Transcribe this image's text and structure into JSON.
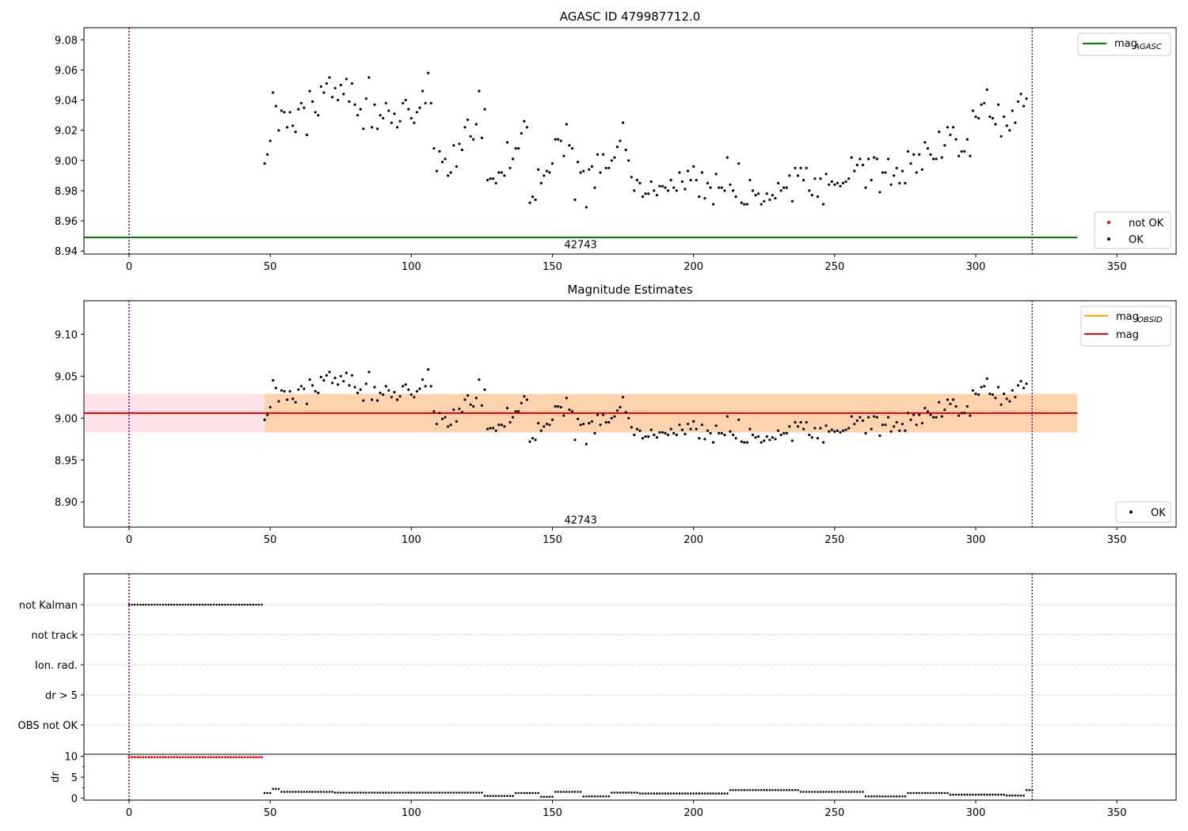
{
  "chart_data": [
    {
      "type": "scatter",
      "title": "AGASC ID 479987712.0",
      "xlim": [
        -16,
        371
      ],
      "ylim": [
        8.938,
        9.088
      ],
      "xticks": [
        0,
        50,
        100,
        150,
        200,
        250,
        300,
        350
      ],
      "yticks": [
        8.94,
        8.96,
        8.98,
        9.0,
        9.02,
        9.04,
        9.06,
        9.08
      ],
      "ytick_labels": [
        "8.94",
        "8.96",
        "8.98",
        "9.00",
        "9.02",
        "9.04",
        "9.06",
        "9.08"
      ],
      "vlines": [
        0,
        320
      ],
      "vline_color": "#800080",
      "hline": {
        "y": 8.949,
        "x": [
          -16,
          336
        ],
        "color": "#008000"
      },
      "annotation": {
        "text": "42743",
        "x": 160,
        "y": 8.944
      },
      "legend_lines": [
        {
          "name": "mag",
          "sub": "AGASC",
          "color": "#008000"
        }
      ],
      "legend_markers": [
        {
          "name": "not OK",
          "color": "#ff0000"
        },
        {
          "name": "OK",
          "color": "#000000"
        }
      ],
      "series_key": "mag_points",
      "series_color": "#000000"
    },
    {
      "type": "scatter",
      "title": "Magnitude Estimates",
      "xlim": [
        -16,
        371
      ],
      "ylim": [
        8.87,
        9.14
      ],
      "xticks": [
        0,
        50,
        100,
        150,
        200,
        250,
        300,
        350
      ],
      "yticks": [
        8.9,
        8.95,
        9.0,
        9.05,
        9.1
      ],
      "ytick_labels": [
        "8.90",
        "8.95",
        "9.00",
        "9.05",
        "9.10"
      ],
      "vlines": [
        0,
        320
      ],
      "vline_color": "#800080",
      "bands": [
        {
          "x": [
            -16,
            336
          ],
          "y": [
            8.983,
            9.029
          ],
          "color": "#ffc0cb",
          "opacity": 0.45
        },
        {
          "x": [
            48,
            336
          ],
          "y": [
            8.983,
            9.029
          ],
          "color": "#ffa500",
          "opacity": 0.25
        }
      ],
      "hline": {
        "y": 9.006,
        "x": [
          -16,
          336
        ],
        "color": "#ff0000"
      },
      "annotation": {
        "text": "42743",
        "x": 160,
        "y": 8.878
      },
      "legend_lines": [
        {
          "name": "mag",
          "sub": "OBSID",
          "color": "#ffa500"
        },
        {
          "name": "mag",
          "sub": "",
          "color": "#ff0000"
        }
      ],
      "legend_markers": [
        {
          "name": "OK",
          "color": "#000000"
        }
      ],
      "series_key": "mag_points",
      "series_color": "#000000"
    },
    {
      "type": "scatter",
      "title": "",
      "xlim": [
        -16,
        371
      ],
      "xticks": [
        0,
        50,
        100,
        150,
        200,
        250,
        300,
        350
      ],
      "category_rows": [
        "not Kalman",
        "not track",
        "Ion. rad.",
        "dr > 5",
        "OBS not OK"
      ],
      "flag_ranges": [
        {
          "row": "not Kalman",
          "x": [
            0,
            47
          ]
        }
      ],
      "vlines": [
        0,
        320
      ],
      "vline_color": "#800080"
    },
    {
      "type": "scatter",
      "title": "",
      "ylabel": "dr",
      "xlim": [
        -16,
        371
      ],
      "ylim": [
        -0.5,
        10.5
      ],
      "xticks": [
        0,
        50,
        100,
        150,
        200,
        250,
        300,
        350
      ],
      "yticks": [
        0,
        5,
        10
      ],
      "ytick_labels": [
        "0",
        "5",
        "10"
      ],
      "vlines": [
        0,
        320
      ],
      "vline_color": "#800080",
      "dr_high": {
        "x": [
          0,
          47
        ],
        "y": 9.8,
        "color": "#ff0000"
      },
      "dr_segments": [
        {
          "x": [
            48,
            50
          ],
          "y": 1.2
        },
        {
          "x": [
            51,
            53
          ],
          "y": 2.2
        },
        {
          "x": [
            54,
            72
          ],
          "y": 1.5
        },
        {
          "x": [
            73,
            125
          ],
          "y": 1.3
        },
        {
          "x": [
            126,
            136
          ],
          "y": 0.5
        },
        {
          "x": [
            137,
            145
          ],
          "y": 1.2
        },
        {
          "x": [
            146,
            150
          ],
          "y": 0.3
        },
        {
          "x": [
            151,
            160
          ],
          "y": 1.5
        },
        {
          "x": [
            161,
            170
          ],
          "y": 0.4
        },
        {
          "x": [
            171,
            180
          ],
          "y": 1.3
        },
        {
          "x": [
            181,
            212
          ],
          "y": 1.1
        },
        {
          "x": [
            213,
            237
          ],
          "y": 1.9
        },
        {
          "x": [
            238,
            260
          ],
          "y": 1.5
        },
        {
          "x": [
            261,
            275
          ],
          "y": 0.4
        },
        {
          "x": [
            276,
            290
          ],
          "y": 1.2
        },
        {
          "x": [
            291,
            310
          ],
          "y": 0.8
        },
        {
          "x": [
            311,
            317
          ],
          "y": 0.6
        },
        {
          "x": [
            318,
            320
          ],
          "y": 1.9
        }
      ]
    }
  ],
  "mag_points": [
    [
      48,
      8.998
    ],
    [
      49,
      9.004
    ],
    [
      50,
      9.013
    ],
    [
      51,
      9.045
    ],
    [
      52,
      9.036
    ],
    [
      53,
      9.02
    ],
    [
      54,
      9.033
    ],
    [
      55,
      9.032
    ],
    [
      56,
      9.022
    ],
    [
      57,
      9.032
    ],
    [
      58,
      9.023
    ],
    [
      59,
      9.019
    ],
    [
      60,
      9.034
    ],
    [
      61,
      9.038
    ],
    [
      62,
      9.035
    ],
    [
      63,
      9.017
    ],
    [
      64,
      9.046
    ],
    [
      65,
      9.039
    ],
    [
      66,
      9.032
    ],
    [
      67,
      9.03
    ],
    [
      68,
      9.049
    ],
    [
      69,
      9.045
    ],
    [
      70,
      9.051
    ],
    [
      71,
      9.055
    ],
    [
      72,
      9.042
    ],
    [
      73,
      9.048
    ],
    [
      74,
      9.04
    ],
    [
      75,
      9.05
    ],
    [
      76,
      9.044
    ],
    [
      77,
      9.054
    ],
    [
      78,
      9.039
    ],
    [
      79,
      9.051
    ],
    [
      80,
      9.037
    ],
    [
      81,
      9.03
    ],
    [
      82,
      9.034
    ],
    [
      83,
      9.021
    ],
    [
      84,
      9.041
    ],
    [
      85,
      9.055
    ],
    [
      86,
      9.022
    ],
    [
      87,
      9.037
    ],
    [
      88,
      9.021
    ],
    [
      89,
      9.03
    ],
    [
      90,
      9.028
    ],
    [
      91,
      9.038
    ],
    [
      92,
      9.033
    ],
    [
      93,
      9.025
    ],
    [
      94,
      9.031
    ],
    [
      95,
      9.022
    ],
    [
      96,
      9.026
    ],
    [
      97,
      9.038
    ],
    [
      98,
      9.04
    ],
    [
      99,
      9.034
    ],
    [
      100,
      9.028
    ],
    [
      101,
      9.025
    ],
    [
      102,
      9.032
    ],
    [
      103,
      9.035
    ],
    [
      104,
      9.046
    ],
    [
      105,
      9.038
    ],
    [
      106,
      9.058
    ],
    [
      107,
      9.038
    ],
    [
      108,
      9.008
    ],
    [
      109,
      8.993
    ],
    [
      110,
      9.006
    ],
    [
      111,
      8.999
    ],
    [
      112,
      9.001
    ],
    [
      113,
      8.99
    ],
    [
      114,
      8.992
    ],
    [
      115,
      9.01
    ],
    [
      116,
      8.996
    ],
    [
      117,
      9.011
    ],
    [
      118,
      9.007
    ],
    [
      119,
      9.022
    ],
    [
      120,
      9.027
    ],
    [
      121,
      9.016
    ],
    [
      122,
      9.014
    ],
    [
      123,
      9.024
    ],
    [
      124,
      9.046
    ],
    [
      125,
      9.015
    ],
    [
      126,
      9.034
    ],
    [
      127,
      8.987
    ],
    [
      128,
      8.988
    ],
    [
      129,
      8.988
    ],
    [
      130,
      8.985
    ],
    [
      131,
      8.992
    ],
    [
      132,
      8.992
    ],
    [
      133,
      8.99
    ],
    [
      134,
      9.012
    ],
    [
      135,
      8.995
    ],
    [
      136,
      9.001
    ],
    [
      137,
      9.008
    ],
    [
      138,
      9.008
    ],
    [
      139,
      9.018
    ],
    [
      140,
      9.026
    ],
    [
      141,
      9.022
    ],
    [
      142,
      8.972
    ],
    [
      143,
      8.976
    ],
    [
      144,
      8.974
    ],
    [
      145,
      8.994
    ],
    [
      146,
      8.985
    ],
    [
      147,
      8.99
    ],
    [
      148,
      8.993
    ],
    [
      149,
      8.992
    ],
    [
      150,
      8.998
    ],
    [
      151,
      9.014
    ],
    [
      152,
      9.014
    ],
    [
      153,
      9.013
    ],
    [
      154,
      9.003
    ],
    [
      155,
      9.024
    ],
    [
      156,
      9.01
    ],
    [
      157,
      9.008
    ],
    [
      158,
      8.974
    ],
    [
      159,
      8.999
    ],
    [
      160,
      8.992
    ],
    [
      161,
      8.993
    ],
    [
      162,
      8.969
    ],
    [
      163,
      8.994
    ],
    [
      164,
      8.996
    ],
    [
      165,
      8.982
    ],
    [
      166,
      9.004
    ],
    [
      167,
      8.992
    ],
    [
      168,
      9.004
    ],
    [
      169,
      8.995
    ],
    [
      170,
      8.995
    ],
    [
      171,
      9.0
    ],
    [
      172,
      9.002
    ],
    [
      173,
      9.009
    ],
    [
      174,
      9.013
    ],
    [
      175,
      9.025
    ],
    [
      176,
      9.007
    ],
    [
      177,
      9.0
    ],
    [
      178,
      8.989
    ],
    [
      179,
      8.98
    ],
    [
      180,
      8.987
    ],
    [
      181,
      8.985
    ],
    [
      182,
      8.976
    ],
    [
      183,
      8.978
    ],
    [
      184,
      8.978
    ],
    [
      185,
      8.986
    ],
    [
      186,
      8.98
    ],
    [
      187,
      8.977
    ],
    [
      188,
      8.983
    ],
    [
      189,
      8.983
    ],
    [
      190,
      8.982
    ],
    [
      191,
      8.98
    ],
    [
      192,
      8.987
    ],
    [
      193,
      8.982
    ],
    [
      194,
      8.98
    ],
    [
      195,
      8.992
    ],
    [
      196,
      8.986
    ],
    [
      197,
      8.981
    ],
    [
      198,
      8.993
    ],
    [
      199,
      8.987
    ],
    [
      200,
      8.996
    ],
    [
      201,
      8.987
    ],
    [
      202,
      8.976
    ],
    [
      203,
      8.992
    ],
    [
      204,
      8.975
    ],
    [
      205,
      8.985
    ],
    [
      206,
      8.982
    ],
    [
      207,
      8.971
    ],
    [
      208,
      8.991
    ],
    [
      209,
      8.982
    ],
    [
      210,
      8.982
    ],
    [
      211,
      8.98
    ],
    [
      212,
      9.002
    ],
    [
      213,
      8.984
    ],
    [
      214,
      8.98
    ],
    [
      215,
      8.976
    ],
    [
      216,
      8.998
    ],
    [
      217,
      8.972
    ],
    [
      218,
      8.971
    ],
    [
      219,
      8.971
    ],
    [
      220,
      8.987
    ],
    [
      221,
      8.98
    ],
    [
      222,
      8.977
    ],
    [
      223,
      8.978
    ],
    [
      224,
      8.971
    ],
    [
      225,
      8.973
    ],
    [
      226,
      8.978
    ],
    [
      227,
      8.974
    ],
    [
      228,
      8.977
    ],
    [
      229,
      8.975
    ],
    [
      230,
      8.985
    ],
    [
      231,
      8.98
    ],
    [
      232,
      8.982
    ],
    [
      233,
      8.982
    ],
    [
      234,
      8.99
    ],
    [
      235,
      8.973
    ],
    [
      236,
      8.995
    ],
    [
      237,
      8.99
    ],
    [
      238,
      8.995
    ],
    [
      239,
      8.987
    ],
    [
      240,
      8.995
    ],
    [
      241,
      8.98
    ],
    [
      242,
      8.977
    ],
    [
      243,
      8.988
    ],
    [
      244,
      8.976
    ],
    [
      245,
      8.988
    ],
    [
      246,
      8.971
    ],
    [
      247,
      8.991
    ],
    [
      248,
      8.984
    ],
    [
      249,
      8.986
    ],
    [
      250,
      8.984
    ],
    [
      251,
      8.985
    ],
    [
      252,
      8.983
    ],
    [
      253,
      8.985
    ],
    [
      254,
      8.986
    ],
    [
      255,
      8.988
    ],
    [
      256,
      9.002
    ],
    [
      257,
      8.993
    ],
    [
      258,
      8.997
    ],
    [
      259,
      9.001
    ],
    [
      260,
      8.997
    ],
    [
      261,
      8.982
    ],
    [
      262,
      9.001
    ],
    [
      263,
      8.987
    ],
    [
      264,
      9.002
    ],
    [
      265,
      9.001
    ],
    [
      266,
      8.979
    ],
    [
      267,
      8.992
    ],
    [
      268,
      8.992
    ],
    [
      269,
      9.001
    ],
    [
      270,
      8.984
    ],
    [
      271,
      8.99
    ],
    [
      272,
      8.995
    ],
    [
      273,
      8.985
    ],
    [
      274,
      8.993
    ],
    [
      275,
      8.985
    ],
    [
      276,
      9.006
    ],
    [
      277,
      8.998
    ],
    [
      278,
      9.004
    ],
    [
      279,
      8.992
    ],
    [
      280,
      9.004
    ],
    [
      281,
      8.994
    ],
    [
      282,
      9.012
    ],
    [
      283,
      9.008
    ],
    [
      284,
      9.004
    ],
    [
      285,
      9.001
    ],
    [
      286,
      9.001
    ],
    [
      287,
      9.019
    ],
    [
      288,
      9.002
    ],
    [
      289,
      9.01
    ],
    [
      290,
      9.022
    ],
    [
      291,
      9.017
    ],
    [
      292,
      9.022
    ],
    [
      293,
      9.014
    ],
    [
      294,
      9.003
    ],
    [
      295,
      9.006
    ],
    [
      296,
      9.006
    ],
    [
      297,
      9.014
    ],
    [
      298,
      9.003
    ],
    [
      299,
      9.033
    ],
    [
      300,
      9.029
    ],
    [
      301,
      9.028
    ],
    [
      302,
      9.037
    ],
    [
      303,
      9.038
    ],
    [
      304,
      9.047
    ],
    [
      305,
      9.029
    ],
    [
      306,
      9.028
    ],
    [
      307,
      9.024
    ],
    [
      308,
      9.037
    ],
    [
      309,
      9.016
    ],
    [
      310,
      9.029
    ],
    [
      311,
      9.023
    ],
    [
      312,
      9.02
    ],
    [
      313,
      9.033
    ],
    [
      314,
      9.025
    ],
    [
      315,
      9.039
    ],
    [
      316,
      9.044
    ],
    [
      317,
      9.036
    ],
    [
      318,
      9.041
    ]
  ]
}
